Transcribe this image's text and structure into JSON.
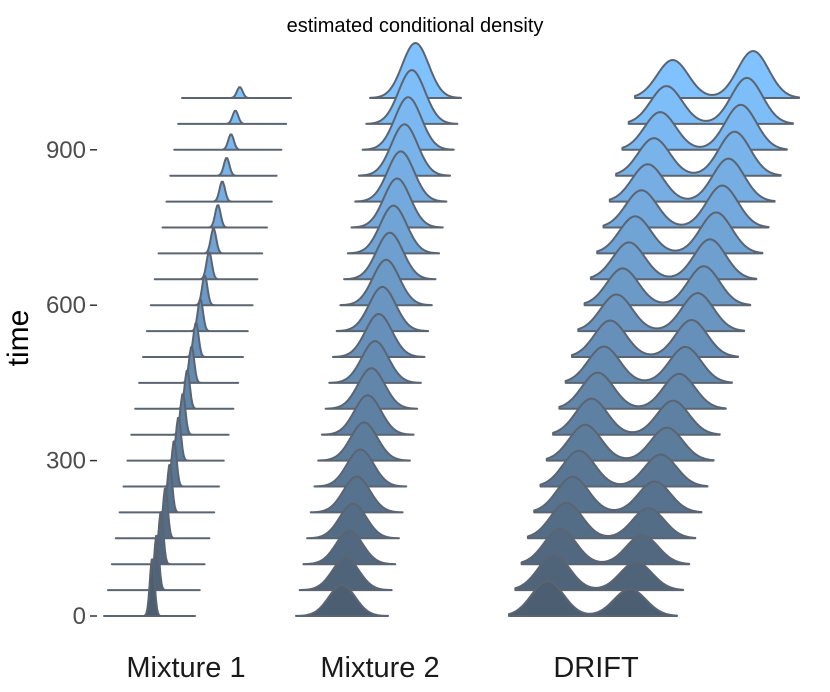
{
  "chart_data": {
    "type": "ridgeline",
    "title": "estimated conditional density",
    "ylabel": "time",
    "xlabel": "",
    "ylim": [
      0,
      1000
    ],
    "y_ticks": [
      0,
      300,
      600,
      900
    ],
    "categories": [
      "Mixture 1",
      "Mixture 2",
      "DRIFT"
    ],
    "ridge_times": [
      0,
      50,
      100,
      150,
      200,
      250,
      300,
      350,
      400,
      450,
      500,
      550,
      600,
      650,
      700,
      750,
      800,
      850,
      900,
      950,
      1000
    ],
    "color_low": "#4c5e72",
    "color_high": "#80c2ff",
    "outline_color": "#5b6471",
    "grid": false,
    "legend": "none"
  }
}
